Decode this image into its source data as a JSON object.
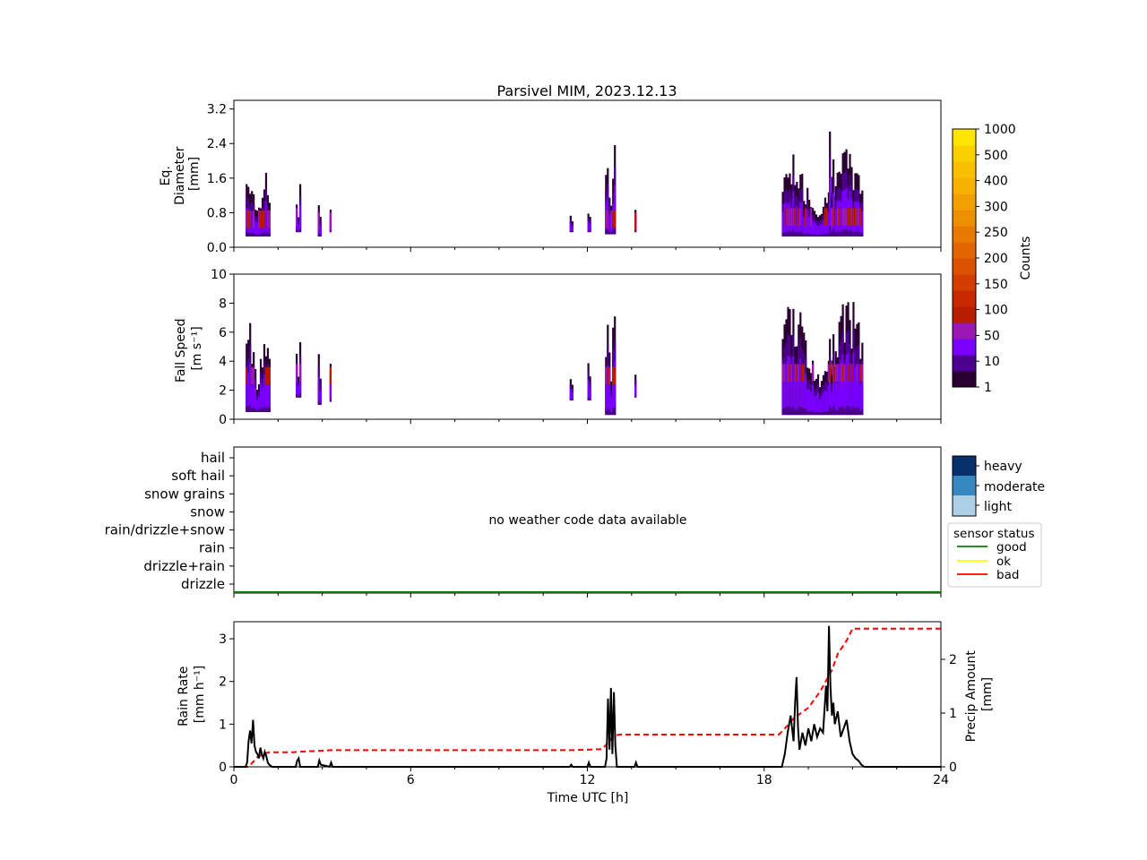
{
  "chart_data": [
    {
      "type": "heatmap",
      "title": "Parsivel MIM, 2023.12.13",
      "ylabel_lines": [
        "Eq.",
        "Diameter",
        "[mm]"
      ],
      "x": {
        "min": 0,
        "max": 24
      },
      "ylim": [
        0,
        3.4
      ],
      "yticks": [
        0.0,
        0.8,
        1.6,
        2.4,
        3.2
      ],
      "ytick_labels": [
        "0.0",
        "0.8",
        "1.6",
        "2.4",
        "3.2"
      ],
      "blobs": [
        {
          "x0": 0.4,
          "x1": 1.2,
          "ylow": 0.25,
          "ytop": 2.0,
          "core": 0.65
        },
        {
          "x0": 2.1,
          "x1": 2.25,
          "ylow": 0.35,
          "ytop": 1.5,
          "core": 0.7
        },
        {
          "x0": 2.85,
          "x1": 2.95,
          "ylow": 0.25,
          "ytop": 1.1,
          "core": 0.6
        },
        {
          "x0": 3.25,
          "x1": 3.3,
          "ylow": 0.35,
          "ytop": 1.0,
          "core": 0.6
        },
        {
          "x0": 11.4,
          "x1": 11.5,
          "ylow": 0.35,
          "ytop": 1.0,
          "core": 0.6
        },
        {
          "x0": 12.0,
          "x1": 12.1,
          "ylow": 0.35,
          "ytop": 1.0,
          "core": 0.6
        },
        {
          "x0": 12.6,
          "x1": 12.95,
          "ylow": 0.3,
          "ytop": 2.5,
          "core": 0.65
        },
        {
          "x0": 13.6,
          "x1": 13.65,
          "ylow": 0.35,
          "ytop": 1.0,
          "core": 0.6
        },
        {
          "x0": 18.6,
          "x1": 21.3,
          "ylow": 0.25,
          "ytop": 2.3,
          "core": 0.7
        },
        {
          "x0": 20.2,
          "x1": 20.35,
          "ylow": 0.3,
          "ytop": 3.4,
          "core": 0.7
        }
      ]
    },
    {
      "type": "heatmap",
      "ylabel_lines": [
        "Fall Speed",
        "[m s⁻¹]"
      ],
      "x": {
        "min": 0,
        "max": 24
      },
      "ylim": [
        0,
        10
      ],
      "yticks": [
        0,
        2,
        4,
        6,
        8,
        10
      ],
      "ytick_labels": [
        "0",
        "2",
        "4",
        "6",
        "8",
        "10"
      ],
      "blobs": [
        {
          "x0": 0.4,
          "x1": 1.2,
          "ylow": 0.5,
          "ytop": 7.0,
          "core": 3.0
        },
        {
          "x0": 2.1,
          "x1": 2.25,
          "ylow": 1.5,
          "ytop": 6.0,
          "core": 3.2
        },
        {
          "x0": 2.85,
          "x1": 2.95,
          "ylow": 1.0,
          "ytop": 5.5,
          "core": 3.0
        },
        {
          "x0": 3.25,
          "x1": 3.3,
          "ylow": 1.2,
          "ytop": 4.5,
          "core": 3.0
        },
        {
          "x0": 11.4,
          "x1": 11.5,
          "ylow": 1.3,
          "ytop": 4.5,
          "core": 3.0
        },
        {
          "x0": 12.0,
          "x1": 12.1,
          "ylow": 1.3,
          "ytop": 5.0,
          "core": 3.0
        },
        {
          "x0": 12.6,
          "x1": 12.95,
          "ylow": 0.3,
          "ytop": 8.3,
          "core": 3.0
        },
        {
          "x0": 13.6,
          "x1": 13.65,
          "ylow": 1.5,
          "ytop": 4.5,
          "core": 3.0
        },
        {
          "x0": 18.6,
          "x1": 21.3,
          "ylow": 0.3,
          "ytop": 8.5,
          "core": 3.2
        },
        {
          "x0": 20.2,
          "x1": 20.35,
          "ylow": 0.5,
          "ytop": 10.0,
          "core": 3.2
        }
      ]
    },
    {
      "type": "table",
      "categories": [
        "drizzle",
        "drizzle+rain",
        "rain",
        "rain/drizzle+snow",
        "snow",
        "snow grains",
        "soft hail",
        "hail"
      ],
      "annotation": "no weather code data available",
      "status_line": {
        "state": "good",
        "x": [
          0,
          24
        ]
      }
    },
    {
      "type": "line",
      "xlabel": "Time UTC [h]",
      "ylabel_lines": [
        "Rain Rate",
        "[mm h⁻¹]"
      ],
      "y2label_lines": [
        "Precip Amount",
        "[mm]"
      ],
      "xlim": [
        0,
        24
      ],
      "xticks": [
        0,
        6,
        12,
        18,
        24
      ],
      "xtick_labels": [
        "0",
        "6",
        "12",
        "18",
        "24"
      ],
      "ylim": [
        0,
        3.4
      ],
      "yticks": [
        0,
        1,
        2,
        3
      ],
      "ytick_labels": [
        "0",
        "1",
        "2",
        "3"
      ],
      "y2lim": [
        0,
        2.7
      ],
      "y2ticks": [
        0,
        1,
        2
      ],
      "y2tick_labels": [
        "0",
        "1",
        "2"
      ],
      "series": [
        {
          "role": "rain_rate",
          "color": "#000000",
          "x": [
            0,
            0.4,
            0.45,
            0.5,
            0.55,
            0.6,
            0.65,
            0.7,
            0.75,
            0.8,
            0.85,
            0.9,
            0.95,
            1.0,
            1.05,
            1.1,
            1.15,
            1.2,
            1.3,
            2.1,
            2.15,
            2.2,
            2.25,
            2.85,
            2.9,
            2.95,
            3.25,
            3.3,
            3.35,
            11.4,
            11.45,
            11.5,
            12.0,
            12.05,
            12.1,
            12.6,
            12.65,
            12.7,
            12.75,
            12.8,
            12.85,
            12.9,
            12.95,
            13.0,
            13.6,
            13.65,
            13.7,
            18.6,
            18.7,
            18.8,
            18.9,
            19.0,
            19.05,
            19.1,
            19.15,
            19.2,
            19.3,
            19.4,
            19.5,
            19.6,
            19.7,
            19.8,
            19.9,
            20.0,
            20.1,
            20.15,
            20.2,
            20.25,
            20.3,
            20.35,
            20.4,
            20.5,
            20.6,
            20.7,
            20.8,
            20.9,
            21.0,
            21.1,
            21.2,
            21.3,
            21.4,
            24
          ],
          "values": [
            0,
            0,
            0.1,
            0.6,
            0.85,
            0.55,
            1.1,
            0.5,
            0.35,
            0.3,
            0.2,
            0.45,
            0.3,
            0.2,
            0.35,
            0.25,
            0.1,
            0.05,
            0,
            0,
            0.15,
            0.2,
            0,
            0,
            0.15,
            0.05,
            0,
            0.1,
            0,
            0,
            0.05,
            0,
            0,
            0.1,
            0,
            0,
            0.2,
            1.6,
            0.4,
            1.85,
            0.3,
            1.75,
            0.5,
            0,
            0,
            0.1,
            0,
            0,
            0.3,
            0.8,
            1.2,
            0.6,
            1.5,
            2.1,
            0.9,
            0.4,
            0.8,
            0.5,
            0.9,
            0.6,
            1.0,
            0.7,
            0.9,
            0.8,
            1.9,
            1.3,
            3.3,
            1.9,
            1.2,
            1.5,
            1.0,
            1.3,
            0.7,
            0.9,
            1.1,
            0.6,
            0.3,
            0.2,
            0.15,
            0.05,
            0,
            0
          ]
        },
        {
          "role": "precip_amount",
          "color": "#ff0000",
          "style": "dashed",
          "axis": "right",
          "x": [
            0,
            0.5,
            0.8,
            1.0,
            1.2,
            2.0,
            2.2,
            3.0,
            3.3,
            11.5,
            12.5,
            12.7,
            12.9,
            13.1,
            18.5,
            18.8,
            19.0,
            19.5,
            19.9,
            20.3,
            20.5,
            20.8,
            21.0,
            24
          ],
          "values": [
            0,
            0,
            0.18,
            0.24,
            0.27,
            0.27,
            0.28,
            0.3,
            0.31,
            0.31,
            0.33,
            0.45,
            0.58,
            0.6,
            0.6,
            0.77,
            0.9,
            1.1,
            1.4,
            1.8,
            2.1,
            2.35,
            2.57,
            2.57
          ]
        }
      ]
    }
  ],
  "colorbar": {
    "label": "Counts",
    "tick_labels": [
      "1",
      "10",
      "50",
      "100",
      "150",
      "200",
      "250",
      "300",
      "400",
      "500",
      "1000"
    ],
    "colors": [
      "#2a0033",
      "#4d008f",
      "#7a00ff",
      "#9b18b5",
      "#b81c00",
      "#c92900",
      "#d43d00",
      "#dc5200",
      "#e26500",
      "#e87a00",
      "#ee8f00",
      "#f2a000",
      "#f5b000",
      "#f8c000",
      "#fbd000",
      "#ffe600"
    ]
  },
  "intensity_legend": {
    "labels": [
      "heavy",
      "moderate",
      "light"
    ],
    "colors": [
      "#08306b",
      "#3787c0",
      "#abd0e6"
    ]
  },
  "status_legend": {
    "title": "sensor status",
    "items": [
      {
        "label": "good",
        "color": "#008000"
      },
      {
        "label": "ok",
        "color": "#ffff00"
      },
      {
        "label": "bad",
        "color": "#ff0000"
      }
    ]
  }
}
